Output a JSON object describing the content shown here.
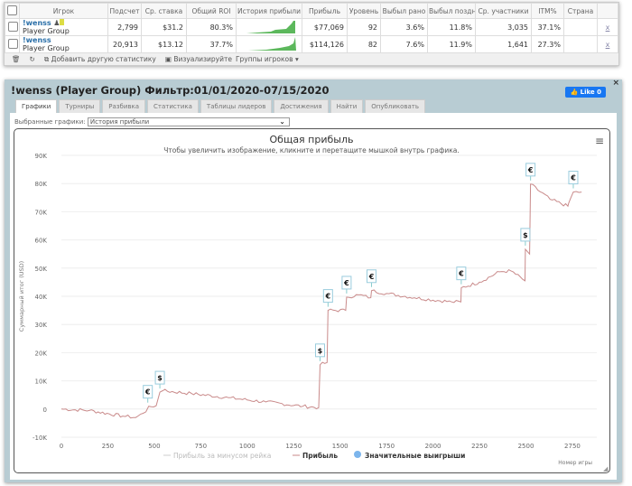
{
  "table": {
    "headers": [
      "Игрок",
      "Подсчет",
      "Ср. ставка",
      "Общий ROI",
      "История прибыли",
      "Прибыль",
      "Уровень",
      "Выбыл рано",
      "Выбыл поздн",
      "Ср. участники",
      "ITM%",
      "Страна"
    ],
    "rows": [
      {
        "name": "!wenss",
        "group": "Player Group",
        "count": "2,799",
        "avg_stake": "$31.2",
        "roi": "80.3%",
        "profit": "$77,069",
        "level": "92",
        "early": "3.6%",
        "late": "11.8%",
        "avg_field": "3,035",
        "itm": "37.1%",
        "country": "",
        "remove": "x"
      },
      {
        "name": "!wenss",
        "group": "Player Group",
        "count": "20,913",
        "avg_stake": "$13.12",
        "roi": "37.7%",
        "profit": "$114,126",
        "level": "82",
        "early": "7.6%",
        "late": "11.9%",
        "avg_field": "1,641",
        "itm": "27.3%",
        "country": "",
        "remove": "x"
      }
    ],
    "footer": {
      "add_stat": "Добавить другую статистику",
      "visualize": "Визуализируйте",
      "groups": "Группы игроков ▾"
    }
  },
  "panel": {
    "title": "!wenss (Player Group) Фильтр:01/01/2020-07/15/2020",
    "like": "Like 0",
    "close": "×",
    "tabs": [
      "Графики",
      "Турниры",
      "Разбивка",
      "Статистика",
      "Таблицы лидеров",
      "Достижения",
      "Найти",
      "Опубликовать"
    ],
    "select_label": "Выбранные графики:",
    "select_value": "История прибыли"
  },
  "chart_data": {
    "type": "line",
    "title": "Общая прибыль",
    "subtitle": "Чтобы увеличить изображение, кликните и перетащите мышкой внутрь графика.",
    "xlabel": "Номер игры",
    "ylabel": "Суммарный итог (USD)",
    "xlim": [
      0,
      2800
    ],
    "ylim": [
      -10000,
      90000
    ],
    "xticks": [
      "0",
      "250",
      "500",
      "750",
      "1000",
      "1250",
      "1500",
      "1750",
      "2000",
      "2250",
      "2500",
      "2750"
    ],
    "yticks": [
      "-10K",
      "0",
      "10K",
      "20K",
      "30K",
      "40K",
      "50K",
      "60K",
      "70K",
      "80K",
      "90K"
    ],
    "legend": [
      "Прибыль за минусом рейка",
      "Прибыль",
      "Значительные выигрыши"
    ],
    "series": [
      {
        "name": "Прибыль",
        "color": "#c98a8a",
        "points": [
          [
            0,
            0
          ],
          [
            150,
            -500
          ],
          [
            330,
            -2500
          ],
          [
            400,
            -3000
          ],
          [
            440,
            -1500
          ],
          [
            455,
            -1000
          ],
          [
            470,
            1000
          ],
          [
            510,
            1200
          ],
          [
            530,
            6000
          ],
          [
            545,
            6500
          ],
          [
            700,
            5500
          ],
          [
            900,
            4000
          ],
          [
            1100,
            2500
          ],
          [
            1300,
            1000
          ],
          [
            1385,
            500
          ],
          [
            1392,
            15700
          ],
          [
            1430,
            16500
          ],
          [
            1435,
            35000
          ],
          [
            1530,
            35000
          ],
          [
            1535,
            39700
          ],
          [
            1600,
            40500
          ],
          [
            1665,
            39500
          ],
          [
            1669,
            42000
          ],
          [
            1750,
            41000
          ],
          [
            1900,
            39500
          ],
          [
            2100,
            38000
          ],
          [
            2150,
            38000
          ],
          [
            2152,
            43000
          ],
          [
            2250,
            45000
          ],
          [
            2358,
            48700
          ],
          [
            2420,
            49000
          ],
          [
            2495,
            45500
          ],
          [
            2497,
            56700
          ],
          [
            2520,
            55000
          ],
          [
            2525,
            79800
          ],
          [
            2630,
            74400
          ],
          [
            2726,
            72000
          ],
          [
            2730,
            73000
          ],
          [
            2755,
            77000
          ],
          [
            2800,
            77000
          ]
        ]
      }
    ],
    "big_wins": [
      {
        "x": 465,
        "y": 1000,
        "symbol": "€"
      },
      {
        "x": 530,
        "y": 6000,
        "symbol": "$"
      },
      {
        "x": 1392,
        "y": 15700,
        "symbol": "$"
      },
      {
        "x": 1435,
        "y": 35000,
        "symbol": "€"
      },
      {
        "x": 1535,
        "y": 39700,
        "symbol": "€"
      },
      {
        "x": 1669,
        "y": 42000,
        "symbol": "€"
      },
      {
        "x": 2152,
        "y": 43000,
        "symbol": "€"
      },
      {
        "x": 2497,
        "y": 56700,
        "symbol": "$"
      },
      {
        "x": 2525,
        "y": 79800,
        "symbol": "€"
      },
      {
        "x": 2755,
        "y": 77000,
        "symbol": "€"
      }
    ]
  }
}
